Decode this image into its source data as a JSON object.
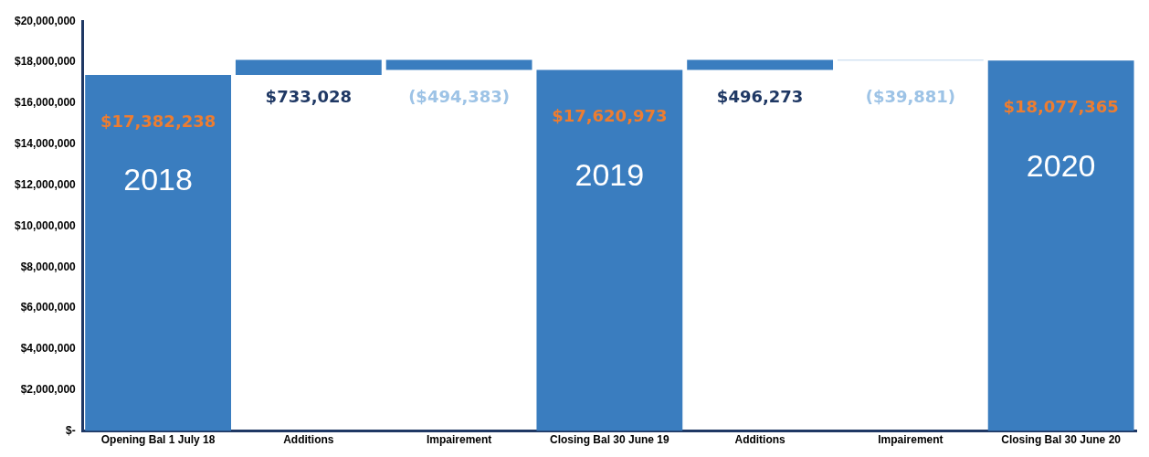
{
  "chart_data": {
    "type": "bar",
    "categories": [
      "Opening Bal 1 July 18",
      "Additions",
      "Impairement",
      "Closing Bal 30 June 19",
      "Additions",
      "Impairement",
      "Closing Bal 30 June 20"
    ],
    "values": [
      17382238,
      733028,
      -494383,
      17620973,
      496273,
      -39881,
      18077365
    ],
    "base": [
      null,
      17382238,
      18115266,
      null,
      17620973,
      18117246,
      null
    ],
    "colors": [
      "#3a7dbf",
      "#3a7dbf",
      "#3a7dbf",
      "#3a7dbf",
      "#3a7dbf",
      "#a9c8e6",
      "#3a7dbf"
    ],
    "value_labels": [
      "$17,382,238",
      "$733,028",
      "($494,383)",
      "$17,620,973",
      "$496,273",
      "($39,881)",
      "$18,077,365"
    ],
    "annotations": [
      "2018",
      "2019",
      "2020"
    ],
    "ylim": [
      0,
      20000000
    ],
    "yticks": [
      {
        "value": 0,
        "label": "$-"
      },
      {
        "value": 2000000,
        "label": "$2,000,000"
      },
      {
        "value": 4000000,
        "label": "$4,000,000"
      },
      {
        "value": 6000000,
        "label": "$6,000,000"
      },
      {
        "value": 8000000,
        "label": "$8,000,000"
      },
      {
        "value": 10000000,
        "label": "$10,000,000"
      },
      {
        "value": 12000000,
        "label": "$12,000,000"
      },
      {
        "value": 14000000,
        "label": "$14,000,000"
      },
      {
        "value": 16000000,
        "label": "$16,000,000"
      },
      {
        "value": 18000000,
        "label": "$18,000,000"
      },
      {
        "value": 20000000,
        "label": "$20,000,000"
      }
    ],
    "grid": false,
    "legend": false
  }
}
